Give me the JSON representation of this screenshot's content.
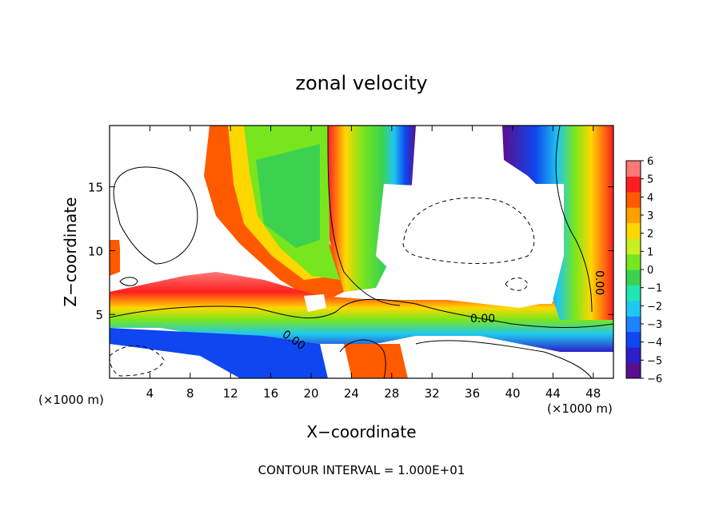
{
  "chart_data": {
    "type": "heatmap",
    "title": "zonal velocity",
    "xlabel": "X−coordinate",
    "ylabel": "Z−coordinate",
    "x_unit_left": "(×1000 m)",
    "x_unit_right": "(×1000 m)",
    "footer": "CONTOUR INTERVAL = 1.000E+01",
    "xlim": [
      0,
      50
    ],
    "ylim": [
      0,
      19.8
    ],
    "x_ticks": [
      "4",
      "8",
      "12",
      "16",
      "20",
      "24",
      "28",
      "32",
      "36",
      "40",
      "44",
      "48"
    ],
    "y_ticks": [
      "5",
      "10",
      "15"
    ],
    "contour_labels": [
      "0.00",
      "0.00",
      "0.00"
    ],
    "colorbar": {
      "min": -6,
      "max": 6,
      "tick_labels": [
        "6",
        "5",
        "4",
        "3",
        "2",
        "1",
        "0",
        "−1",
        "−2",
        "−3",
        "−4",
        "−5",
        "−6"
      ],
      "colors": [
        "#5a0f8c",
        "#2d1ec8",
        "#0f46f0",
        "#1e82ff",
        "#1ec8f0",
        "#1ee6b4",
        "#3cd250",
        "#78e61e",
        "#c8f01e",
        "#ffd700",
        "#ffa000",
        "#ff5a00",
        "#ff1e1e",
        "#ff7878"
      ]
    }
  }
}
